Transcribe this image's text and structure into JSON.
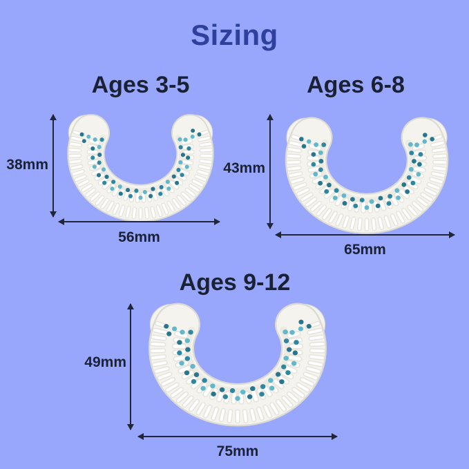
{
  "title": "Sizing",
  "sizes": [
    {
      "label": "Ages 3-5",
      "height": "38mm",
      "width": "56mm",
      "height_mm": 38,
      "width_mm": 56
    },
    {
      "label": "Ages 6-8",
      "height": "43mm",
      "width": "65mm",
      "height_mm": 43,
      "width_mm": 65
    },
    {
      "label": "Ages 9-12",
      "height": "49mm",
      "width": "75mm",
      "height_mm": 49,
      "width_mm": 75
    }
  ],
  "colors": {
    "background": "#98a7fb",
    "title": "#2e3f9c",
    "text": "#1b2134",
    "arrow": "#20263a",
    "mouthpiece_body": "#f4f3ee",
    "mouthpiece_outline": "#dcdbd3",
    "inner_shade": "#e9e8e1",
    "bristle": "#ffffff",
    "bristle_shadow": "#e4e3db",
    "dot_dark": "#2e87a0",
    "dot_light": "#63b7ca",
    "dot_deep": "#27768e"
  }
}
